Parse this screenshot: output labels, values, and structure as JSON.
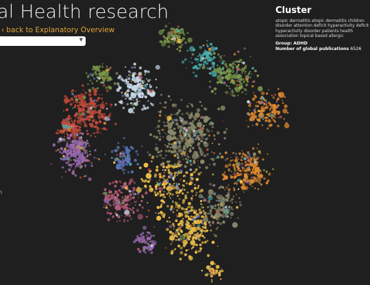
{
  "header": {
    "title": "al Health research",
    "back_link": "back to Explanatory Overview",
    "back_arrow": "‹"
  },
  "dropdown": {
    "selected": "",
    "icon": "chevron-down-icon"
  },
  "cluster_panel": {
    "heading": "Cluster",
    "terms": "atopic dermatitis atopic dermatitis children disorder attention deficit hyperactivity deficit hyperactivity disorder patients health association topical based allergic",
    "group_label": "Group:",
    "group_value": "ADHD",
    "pubs_label": "Number of global publications",
    "pubs_value": "6526"
  },
  "left_marker": "n",
  "colors": {
    "background": "#1f1f1f",
    "accent": "#e3a43a",
    "cluster_palette": [
      "#c84a3c",
      "#e08a2e",
      "#f0c04a",
      "#7a9a4a",
      "#9a6ab0",
      "#5a7ac0",
      "#c8d8e8",
      "#4ab0b0",
      "#b85a7a",
      "#8a8a6a"
    ]
  }
}
